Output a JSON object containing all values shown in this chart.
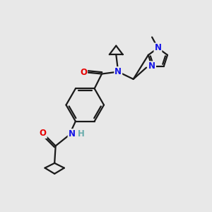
{
  "bg_color": "#e8e8e8",
  "bond_color": "#1a1a1a",
  "atom_colors": {
    "N": "#1414e6",
    "O": "#e60000",
    "H": "#6aacac",
    "C": "#1a1a1a"
  },
  "lw": 1.6,
  "fs": 8.5
}
